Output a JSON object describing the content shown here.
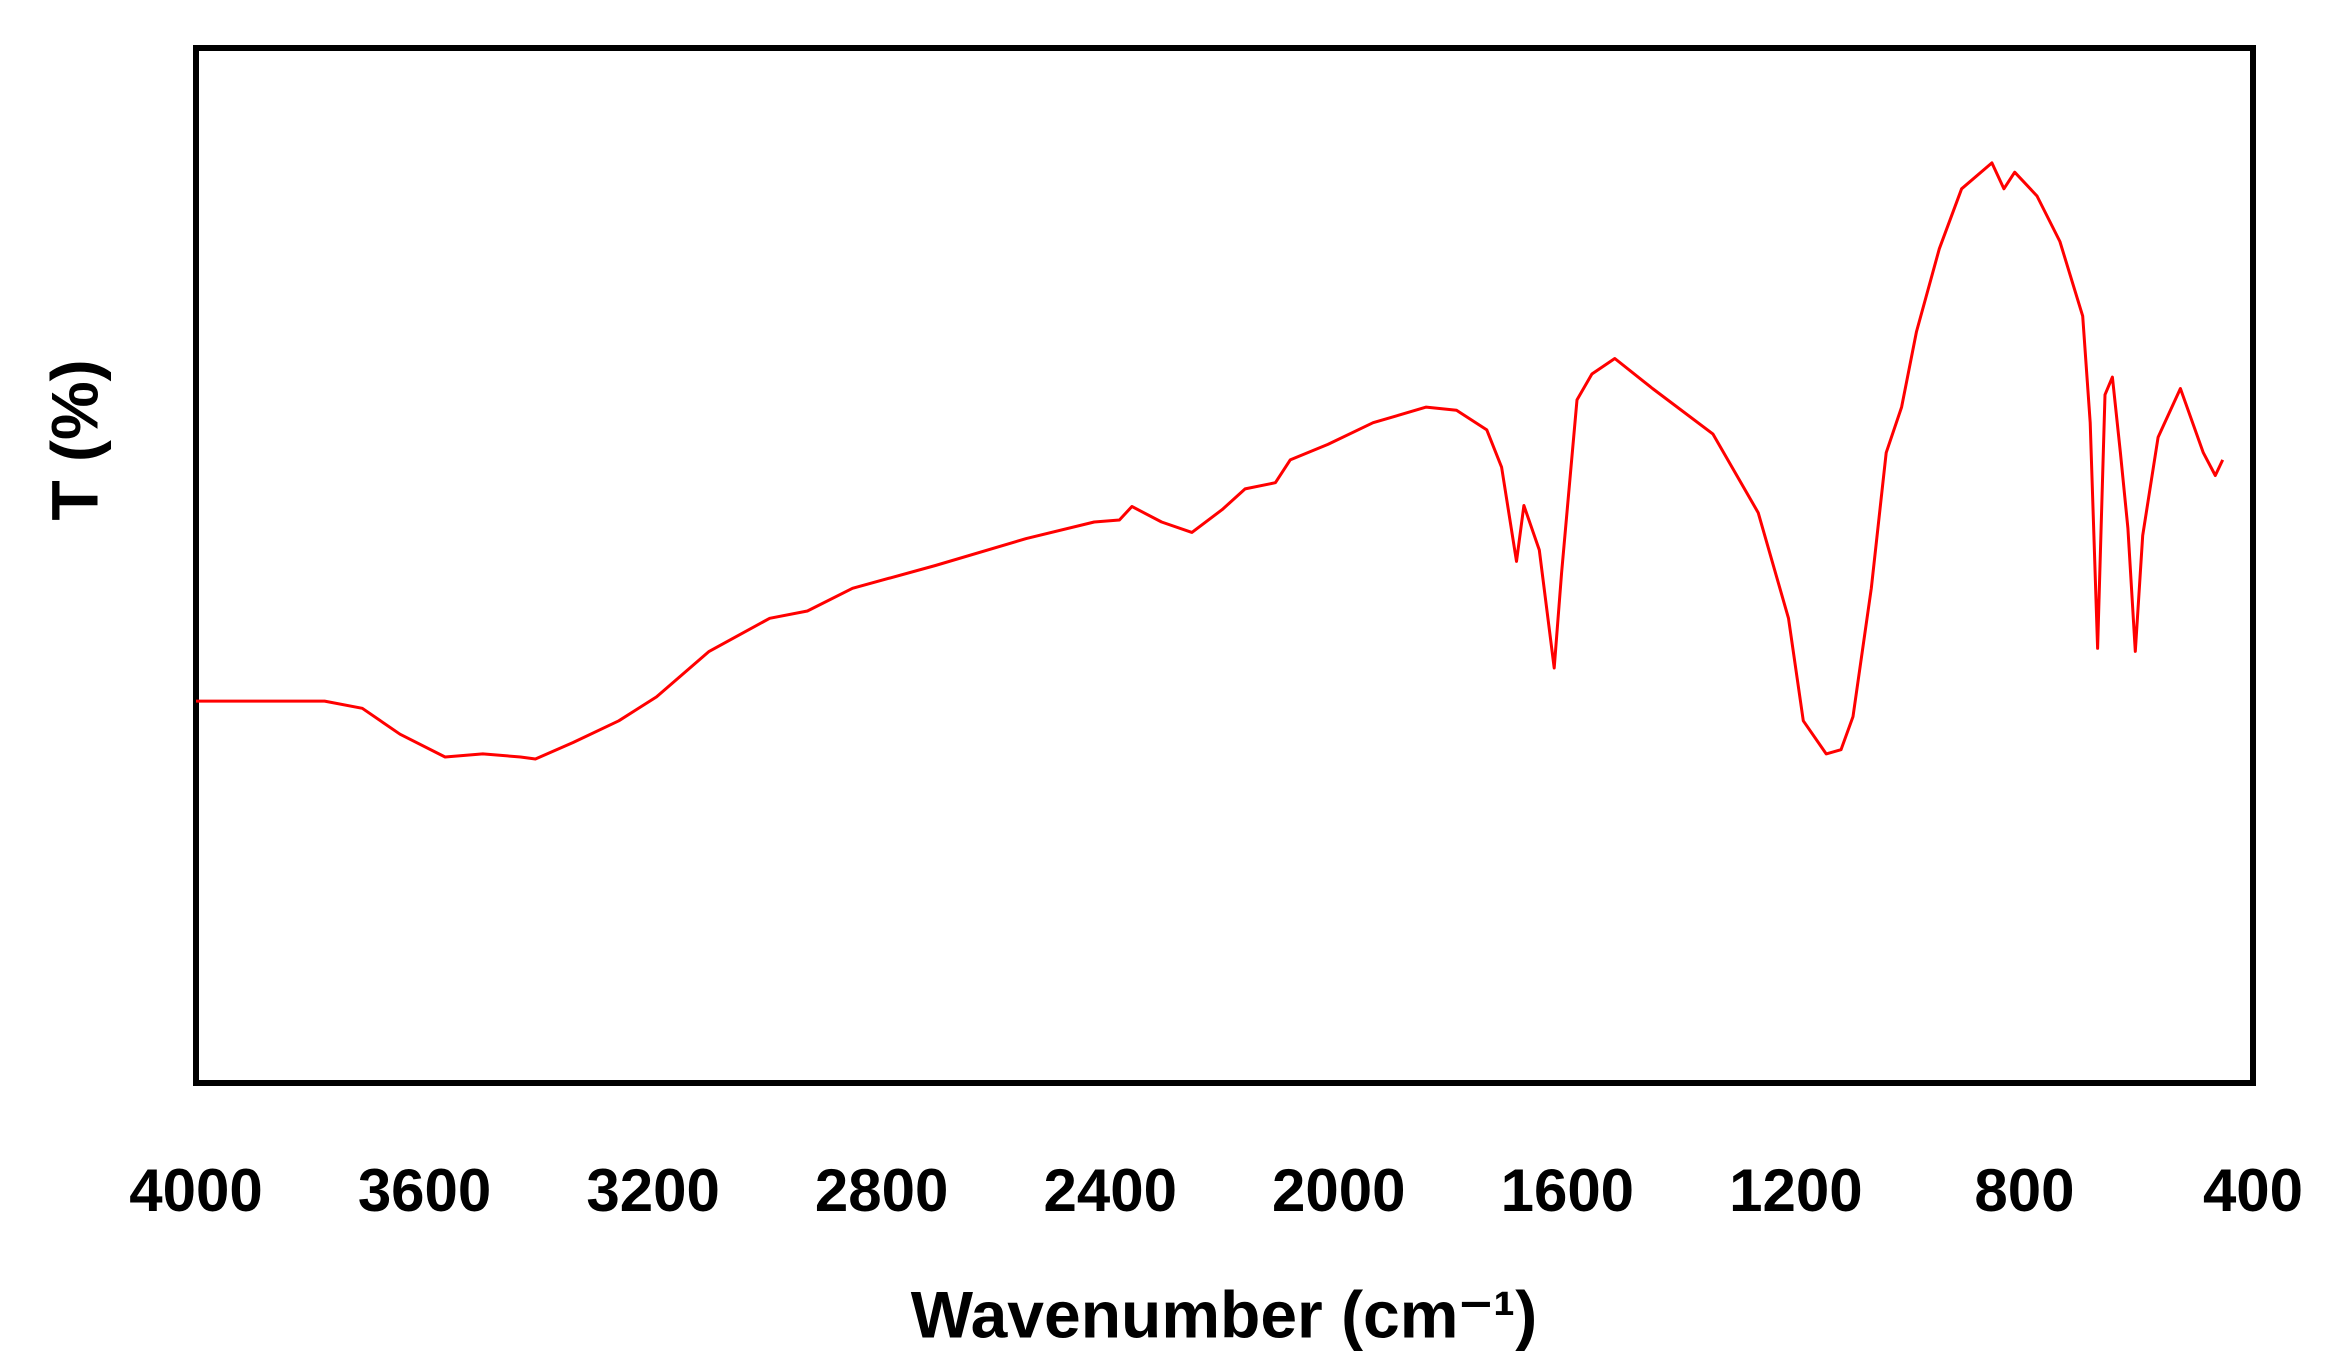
{
  "chart_data": {
    "type": "line",
    "xlabel": "Wavenumber (cm⁻¹)",
    "ylabel": "T (%)",
    "xlim": [
      4000,
      400
    ],
    "xticks": [
      4000,
      3600,
      3200,
      2800,
      2400,
      2000,
      1600,
      1200,
      800,
      400
    ],
    "ylim": [
      0,
      100
    ],
    "series": [
      {
        "color": "#ff0000",
        "x": [
          4000,
          3775,
          3709,
          3643,
          3564,
          3498,
          3432,
          3406,
          3340,
          3260,
          3194,
          3102,
          2996,
          2930,
          2851,
          2706,
          2547,
          2428,
          2384,
          2362,
          2310,
          2257,
          2204,
          2164,
          2111,
          2085,
          2019,
          1940,
          1847,
          1794,
          1741,
          1715,
          1689,
          1676,
          1649,
          1623,
          1610,
          1583,
          1557,
          1517,
          1451,
          1345,
          1266,
          1213,
          1187,
          1147,
          1121,
          1100,
          1068,
          1042,
          1015,
          989,
          949,
          910,
          857,
          836,
          817,
          778,
          738,
          698,
          685,
          672,
          659,
          646,
          632,
          619,
          606,
          593,
          566,
          527,
          487,
          466,
          453
        ],
        "values": [
          36.9,
          36.9,
          36.2,
          33.7,
          31.5,
          31.8,
          31.5,
          31.3,
          32.9,
          35.0,
          37.3,
          41.7,
          44.9,
          45.6,
          47.8,
          50.0,
          52.6,
          54.2,
          54.4,
          55.7,
          54.2,
          53.2,
          55.4,
          57.4,
          58.0,
          60.2,
          61.7,
          63.8,
          65.3,
          65.0,
          63.1,
          59.5,
          50.4,
          55.8,
          51.5,
          40.1,
          49.3,
          66.0,
          68.5,
          70.0,
          67.1,
          62.7,
          55.1,
          44.9,
          35.0,
          31.8,
          32.2,
          35.4,
          47.8,
          60.9,
          65.3,
          72.6,
          80.6,
          86.4,
          88.9,
          86.4,
          88.0,
          85.7,
          81.3,
          74.1,
          63.8,
          42.0,
          66.5,
          68.2,
          60.9,
          53.6,
          41.7,
          52.9,
          62.4,
          67.1,
          60.9,
          58.7,
          60.2
        ]
      }
    ]
  }
}
